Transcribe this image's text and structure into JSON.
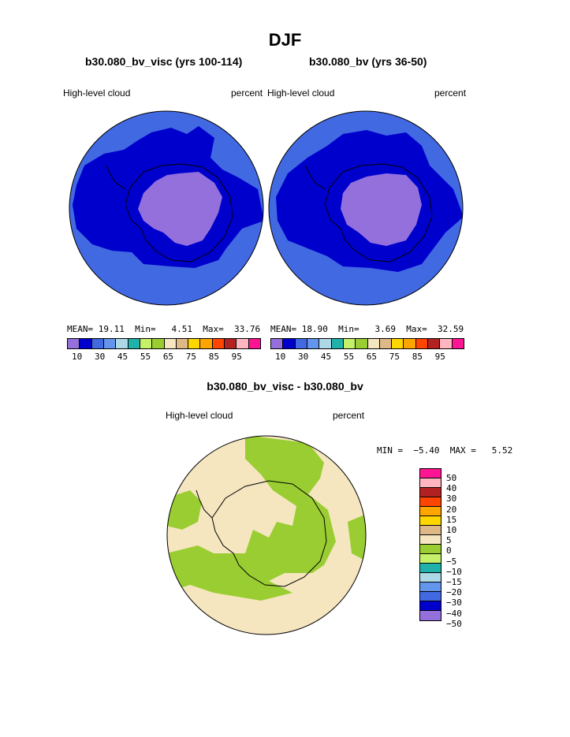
{
  "title": "DJF",
  "panels": [
    {
      "case": "b30.080_bv_visc (yrs 100-114)",
      "left_label": "High-level cloud",
      "right_label": "percent",
      "stats": {
        "mean_label": "MEAN=",
        "mean": "19.11",
        "min_label": "Min=",
        "min": "4.51",
        "max_label": "Max=",
        "max": "33.76"
      }
    },
    {
      "case": "b30.080_bv (yrs 36-50)",
      "left_label": "High-level cloud",
      "right_label": "percent",
      "stats": {
        "mean_label": "MEAN=",
        "mean": "18.90",
        "min_label": "Min=",
        "min": "3.69",
        "max_label": "Max=",
        "max": "32.59"
      }
    }
  ],
  "abs_colorbar": {
    "colors": [
      "#9370db",
      "#0000cd",
      "#4169e1",
      "#6495ed",
      "#add8e6",
      "#20b2aa",
      "#c5f06a",
      "#9acd32",
      "#f5e6c0",
      "#deb887",
      "#ffd700",
      "#ffa500",
      "#ff4500",
      "#b22222",
      "#ffb6c1",
      "#ff1493"
    ],
    "tick_labels": [
      "10",
      "30",
      "45",
      "55",
      "65",
      "75",
      "85",
      "95"
    ]
  },
  "diff": {
    "title": "b30.080_bv_visc - b30.080_bv",
    "left_label": "High-level cloud",
    "right_label": "percent",
    "min_label": "MIN =",
    "min": "−5.40",
    "max_label": "MAX =",
    "max": "5.52",
    "colorbar": {
      "colors": [
        "#ff1493",
        "#ffb6c1",
        "#b22222",
        "#ff4500",
        "#ffa500",
        "#ffd700",
        "#deb887",
        "#f5e6c0",
        "#9acd32",
        "#c5f06a",
        "#20b2aa",
        "#add8e6",
        "#6495ed",
        "#4169e1",
        "#0000cd",
        "#9370db"
      ],
      "tick_labels": [
        "50",
        "40",
        "30",
        "20",
        "15",
        "10",
        "5",
        "0",
        "−5",
        "−10",
        "−15",
        "−20",
        "−30",
        "−40",
        "−50"
      ]
    }
  },
  "map_colors": {
    "ocean_low": "#4169e1",
    "mid": "#0000cd",
    "high": "#9370db",
    "diff_pos": "#f5e6c0",
    "diff_neg": "#9acd32",
    "coast": "#000000"
  }
}
